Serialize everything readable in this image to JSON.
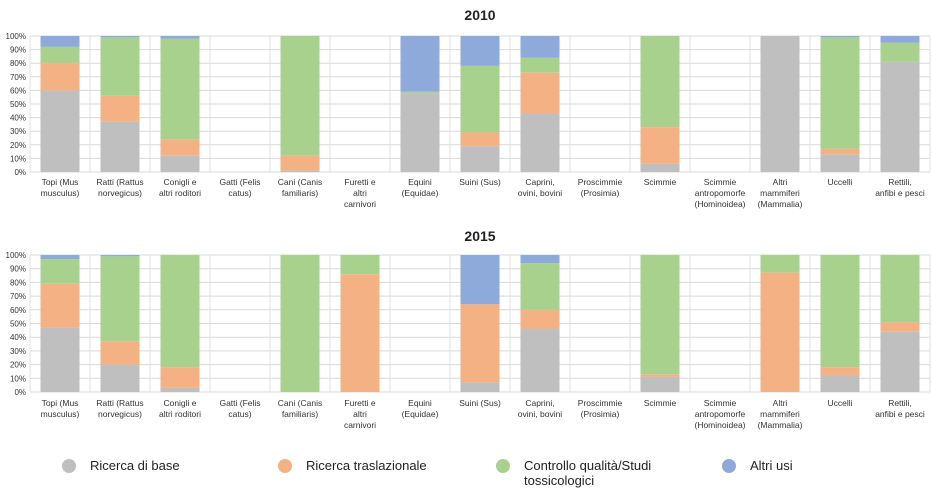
{
  "colors": {
    "base": "#bfbfbf",
    "traslazionale": "#f4b183",
    "controllo": "#a9d18e",
    "altri": "#8eaadb"
  },
  "legend": [
    {
      "label": "Ricerca di base",
      "color": "#bfbfbf"
    },
    {
      "label": "Ricerca traslazionale",
      "color": "#f4b183"
    },
    {
      "label": "Controllo qualità/Studi tossicologici",
      "color": "#a9d18e"
    },
    {
      "label": "Altri usi",
      "color": "#8eaadb"
    }
  ],
  "chart_data": [
    {
      "type": "bar",
      "stacked": true,
      "title": "2010",
      "ylim": [
        0,
        100
      ],
      "yticks": [
        "0%",
        "10%",
        "20%",
        "30%",
        "40%",
        "50%",
        "60%",
        "70%",
        "80%",
        "90%",
        "100%"
      ],
      "grid": true,
      "categories": [
        "Topi (Mus musculus)",
        "Ratti (Rattus norvegicus)",
        "Conigli e altri roditori",
        "Gatti (Felis catus)",
        "Cani (Canis familiaris)",
        "Furetti e altri carnivori",
        "Equini (Equidae)",
        "Suini (Sus)",
        "Caprini, ovini, bovini",
        "Proscimmie (Prosimia)",
        "Scimmie",
        "Scimmie antropomorfe (Hominoidea)",
        "Altri mammiferi (Mammalia)",
        "Uccelli",
        "Rettili, anfibi e pesci"
      ],
      "series": [
        {
          "name": "Ricerca di base",
          "values": [
            60,
            37,
            12,
            0,
            1,
            0,
            58,
            19,
            43,
            0,
            6,
            0,
            100,
            13,
            81
          ]
        },
        {
          "name": "Ricerca traslazionale",
          "values": [
            20,
            19,
            12,
            0,
            11,
            0,
            0,
            10,
            30,
            0,
            27,
            0,
            0,
            4,
            0
          ]
        },
        {
          "name": "Controllo qualità/Studi tossicologici",
          "values": [
            12,
            43,
            74,
            0,
            88,
            0,
            1,
            49,
            11,
            0,
            67,
            0,
            0,
            82,
            14
          ]
        },
        {
          "name": "Altri usi",
          "values": [
            8,
            1,
            2,
            0,
            0,
            0,
            41,
            22,
            16,
            0,
            0,
            0,
            0,
            1,
            5
          ]
        }
      ]
    },
    {
      "type": "bar",
      "stacked": true,
      "title": "2015",
      "ylim": [
        0,
        100
      ],
      "yticks": [
        "0%",
        "10%",
        "20%",
        "30%",
        "40%",
        "50%",
        "60%",
        "70%",
        "80%",
        "90%",
        "100%"
      ],
      "grid": true,
      "categories": [
        "Topi (Mus musculus)",
        "Ratti (Rattus norvegicus)",
        "Conigli e altri roditori",
        "Gatti (Felis catus)",
        "Cani (Canis familiaris)",
        "Furetti e altri carnivori",
        "Equini (Equidae)",
        "Suini (Sus)",
        "Caprini, ovini, bovini",
        "Proscimmie (Prosimia)",
        "Scimmie",
        "Scimmie antropomorfe (Hominoidea)",
        "Altri mammiferi (Mammalia)",
        "Uccelli",
        "Rettili, anfibi e pesci"
      ],
      "series": [
        {
          "name": "Ricerca di base",
          "values": [
            47,
            20,
            3,
            0,
            0,
            0,
            0,
            7,
            46,
            0,
            11,
            0,
            0,
            12,
            44
          ]
        },
        {
          "name": "Ricerca traslazionale",
          "values": [
            32,
            17,
            15,
            0,
            0,
            86,
            0,
            57,
            14,
            0,
            2,
            0,
            87,
            6,
            7
          ]
        },
        {
          "name": "Controllo qualità/Studi tossicologici",
          "values": [
            18,
            62,
            82,
            0,
            100,
            14,
            0,
            0,
            34,
            0,
            87,
            0,
            13,
            82,
            49
          ]
        },
        {
          "name": "Altri usi",
          "values": [
            3,
            1,
            0,
            0,
            0,
            0,
            0,
            36,
            6,
            0,
            0,
            0,
            0,
            0,
            0
          ]
        }
      ]
    }
  ]
}
